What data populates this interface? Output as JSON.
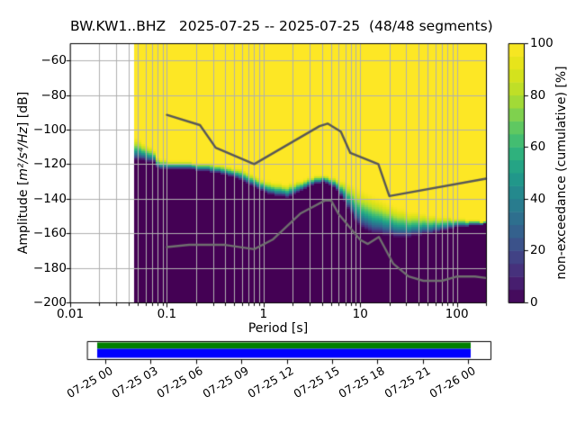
{
  "title": "BW.KW1..BHZ   2025-07-25 -- 2025-07-25  (48/48 segments)",
  "axes": {
    "ylabel_prefix": "Amplitude [",
    "ylabel_math": "m²/s⁴/Hz",
    "ylabel_suffix": "] [dB]",
    "xlabel": "Period [s]",
    "xtick_labels": [
      "0.01",
      "0.1",
      "1",
      "10",
      "100"
    ],
    "ytick_labels": [
      "−60",
      "−80",
      "−100",
      "−120",
      "−140",
      "−160",
      "−180",
      "−200"
    ]
  },
  "colorbar": {
    "label": "non-exceedance (cumulative) [%]",
    "tick_labels": [
      "0",
      "20",
      "40",
      "60",
      "80",
      "100"
    ]
  },
  "timeline": {
    "tick_labels": [
      "07-25 00",
      "07-25 03",
      "07-25 06",
      "07-25 09",
      "07-25 12",
      "07-25 15",
      "07-25 18",
      "07-25 21",
      "07-26 00"
    ],
    "bar_top_color": "#008000",
    "bar_bottom_color": "#0000ff"
  },
  "chart_data": {
    "type": "heatmap",
    "title": "BW.KW1..BHZ   2025-07-25 -- 2025-07-25  (48/48 segments)",
    "xlabel": "Period [s]",
    "ylabel": "Amplitude [m²/s⁴/Hz] [dB]",
    "xscale": "log",
    "xlim": [
      0.01,
      200
    ],
    "ylim": [
      -200,
      -50
    ],
    "xticks": [
      0.01,
      0.1,
      1,
      10,
      100
    ],
    "yticks": [
      -60,
      -80,
      -100,
      -120,
      -140,
      -160,
      -180,
      -200
    ],
    "grid": true,
    "colorbar": {
      "label": "non-exceedance (cumulative) [%]",
      "ticks": [
        0,
        20,
        40,
        60,
        80,
        100
      ],
      "cmap": "viridis",
      "vmin": 0,
      "vmax": 100,
      "n_segments": 20
    },
    "data_period_range": [
      0.046,
      200
    ],
    "band": {
      "description": "cumulative distribution band: above db_at_100pct all segments exceed 100% (yellow), below db_at_0pct 0% (dark purple)",
      "periods": [
        0.046,
        0.052,
        0.06,
        0.068,
        0.074,
        0.076,
        0.085,
        0.1,
        0.13,
        0.17,
        0.21,
        0.27,
        0.35,
        0.45,
        0.6,
        0.8,
        1.05,
        1.4,
        1.8,
        2.3,
        2.8,
        3.5,
        4.3,
        5.0,
        6.0,
        7.0,
        8.5,
        10.0,
        12.0,
        15.0,
        19.0,
        24.0,
        30.0,
        40.0,
        55.0,
        75.0,
        100.0,
        140.0,
        195.0
      ],
      "db_at_100pct": [
        -103,
        -105.5,
        -108,
        -110,
        -111.5,
        -115.5,
        -116.5,
        -117.5,
        -118,
        -118.2,
        -118.5,
        -119,
        -120,
        -121,
        -122.5,
        -125.5,
        -129,
        -130.7,
        -130.8,
        -129.5,
        -127.8,
        -126.2,
        -126,
        -126.8,
        -128.3,
        -129.5,
        -131.5,
        -133.5,
        -136,
        -139,
        -141.5,
        -144,
        -146,
        -147.5,
        -149,
        -150,
        -151,
        -152,
        -153
      ],
      "db_at_0pct": [
        -117.5,
        -117.8,
        -118.2,
        -118.6,
        -119,
        -121.5,
        -122.3,
        -123,
        -123,
        -123.2,
        -123.5,
        -124.2,
        -125.3,
        -126.8,
        -129.5,
        -133.5,
        -136.8,
        -138.4,
        -139.3,
        -136.5,
        -133.8,
        -131,
        -130.4,
        -132,
        -136.5,
        -142,
        -151,
        -156.5,
        -159,
        -160.5,
        -161.5,
        -162.5,
        -162.5,
        -161.5,
        -160,
        -158,
        -156.5,
        -155.5,
        -154.5
      ]
    },
    "noise_models": {
      "nhnm": {
        "name": "Peterson NHNM",
        "periods": [
          0.1,
          0.22,
          0.32,
          0.8,
          3.8,
          4.6,
          6.3,
          7.9,
          15.4,
          20.0,
          200.0
        ],
        "db": [
          -91.5,
          -97.4,
          -110.5,
          -120.0,
          -98.0,
          -96.5,
          -101.2,
          -113.5,
          -120.0,
          -138.5,
          -128.4
        ]
      },
      "nlnm": {
        "name": "Peterson NLNM",
        "periods": [
          0.1,
          0.17,
          0.4,
          0.8,
          1.24,
          2.4,
          4.3,
          5.0,
          6.0,
          10.0,
          12.0,
          15.6,
          21.9,
          31.6,
          45.0,
          70.0,
          101.0,
          154.0,
          200.0
        ],
        "db": [
          -168.0,
          -166.7,
          -166.7,
          -169.2,
          -163.7,
          -148.6,
          -141.1,
          -141.1,
          -149.0,
          -163.8,
          -166.2,
          -162.1,
          -177.5,
          -185.0,
          -187.5,
          -187.5,
          -185.0,
          -185.0,
          -185.9
        ]
      }
    },
    "colors": {
      "grid": "#b0b0b0",
      "nhnm_line": "#585858",
      "nlnm_line": "#6f6f6f",
      "cmap_min": "#440154",
      "cmap_max": "#fde725"
    }
  }
}
